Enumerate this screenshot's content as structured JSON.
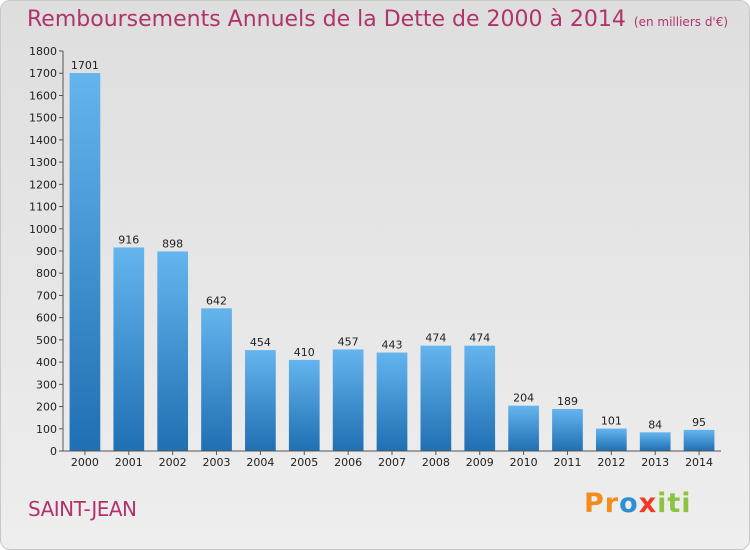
{
  "title": "Remboursements Annuels de la Dette de 2000 à 2014",
  "subtitle": "(en milliers d'€)",
  "town": "SAINT-JEAN",
  "brand": {
    "letters": [
      "P",
      "r",
      "o",
      "x",
      "i",
      "t",
      "i"
    ],
    "colors": [
      "#f28c1e",
      "#f28c1e",
      "#2f8fd6",
      "#ef3b24",
      "#8bc540",
      "#8bc540",
      "#8bc540"
    ]
  },
  "colors": {
    "bar_light": "#64b5ee",
    "bar_dark": "#1f6fb3",
    "title": "#b0336c"
  },
  "chart_data": {
    "type": "bar",
    "categories": [
      "2000",
      "2001",
      "2002",
      "2003",
      "2004",
      "2005",
      "2006",
      "2007",
      "2008",
      "2009",
      "2010",
      "2011",
      "2012",
      "2013",
      "2014"
    ],
    "values": [
      1701,
      916,
      898,
      642,
      454,
      410,
      457,
      443,
      474,
      474,
      204,
      189,
      101,
      84,
      95
    ],
    "title": "Remboursements Annuels de la Dette de 2000 à 2014",
    "xlabel": "",
    "ylabel": "",
    "ylim": [
      0,
      1800
    ],
    "yticks": [
      0,
      100,
      200,
      300,
      400,
      500,
      600,
      700,
      800,
      900,
      1000,
      1100,
      1200,
      1300,
      1400,
      1500,
      1600,
      1700,
      1800
    ],
    "grid": false,
    "data_labels": true
  }
}
